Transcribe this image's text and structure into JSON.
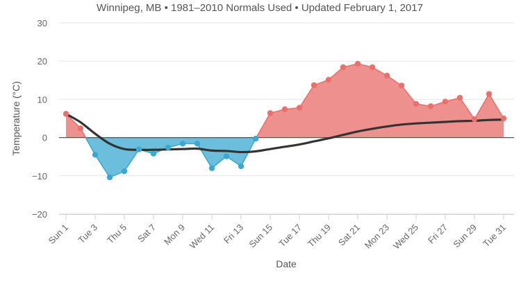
{
  "chart_data": {
    "type": "area",
    "subtitle": "Winnipeg, MB • 1981–2010 Normals Used • Updated February 1, 2017",
    "xlabel": "Date",
    "ylabel": "Temperature (°C)",
    "ylim": [
      -20,
      30
    ],
    "yticks": [
      -20,
      -10,
      0,
      10,
      20,
      30
    ],
    "grid": true,
    "legend": "none",
    "x": [
      1,
      2,
      3,
      4,
      5,
      6,
      7,
      8,
      9,
      10,
      11,
      12,
      13,
      14,
      15,
      16,
      17,
      18,
      19,
      20,
      21,
      22,
      23,
      24,
      25,
      26,
      27,
      28,
      29,
      30,
      31
    ],
    "xticks": [
      {
        "day": 1,
        "label": "Sun 1"
      },
      {
        "day": 3,
        "label": "Tue 3"
      },
      {
        "day": 5,
        "label": "Thu 5"
      },
      {
        "day": 7,
        "label": "Sat 7"
      },
      {
        "day": 9,
        "label": "Mon 9"
      },
      {
        "day": 11,
        "label": "Wed 11"
      },
      {
        "day": 13,
        "label": "Fri 13"
      },
      {
        "day": 15,
        "label": "Sun 15"
      },
      {
        "day": 17,
        "label": "Tue 17"
      },
      {
        "day": 19,
        "label": "Thu 19"
      },
      {
        "day": 21,
        "label": "Sat 21"
      },
      {
        "day": 23,
        "label": "Mon 23"
      },
      {
        "day": 25,
        "label": "Wed 25"
      },
      {
        "day": 27,
        "label": "Fri 27"
      },
      {
        "day": 29,
        "label": "Sun 29"
      },
      {
        "day": 31,
        "label": "Tue 31"
      }
    ],
    "series": [
      {
        "role": "departure",
        "values": [
          6.2,
          2.4,
          -4.5,
          -10.4,
          -8.8,
          -3.1,
          -4.2,
          -2.6,
          -1.6,
          -1.6,
          -8.0,
          -4.9,
          -7.5,
          -0.3,
          6.4,
          7.4,
          7.8,
          13.7,
          15.1,
          18.4,
          19.3,
          18.4,
          16.2,
          13.6,
          8.8,
          8.2,
          9.4,
          10.4,
          4.8,
          11.4,
          5.0
        ],
        "color_above": "#e8706d",
        "color_below": "#3aa8cf",
        "fill_above": "#ee918e",
        "fill_below": "#6cbfdc"
      },
      {
        "role": "trend",
        "values": [
          6.2,
          4.0,
          1.0,
          -1.6,
          -3.0,
          -3.2,
          -3.2,
          -3.1,
          -3.0,
          -2.9,
          -3.4,
          -3.5,
          -3.8,
          -3.6,
          -3.0,
          -2.4,
          -1.8,
          -1.0,
          -0.2,
          0.7,
          1.6,
          2.3,
          2.9,
          3.4,
          3.7,
          3.9,
          4.1,
          4.3,
          4.4,
          4.6,
          4.7
        ],
        "color": "#333333"
      }
    ]
  }
}
